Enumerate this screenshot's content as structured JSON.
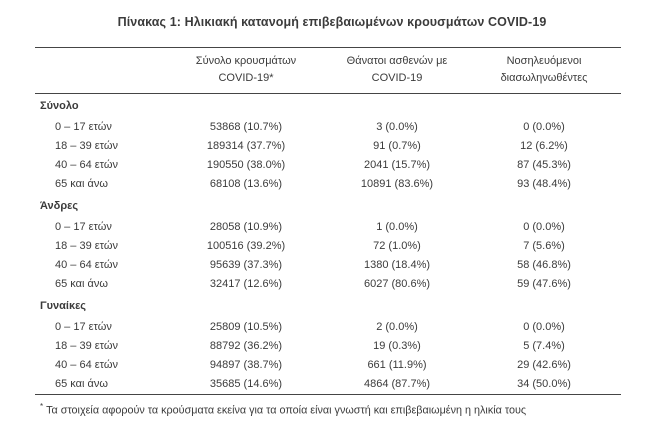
{
  "title": "Πίνακας 1: Ηλικιακή κατανομή επιβεβαιωμένων κρουσμάτων COVID-19",
  "table": {
    "columns": [
      {
        "line1": "Σύνολο κρουσμάτων",
        "line2": "COVID-19*"
      },
      {
        "line1": "Θάνατοι ασθενών με",
        "line2": "COVID-19"
      },
      {
        "line1": "Νοσηλευόμενοι",
        "line2": "διασωληνωθέντες"
      }
    ],
    "sections": [
      {
        "name": "Σύνολο",
        "rows": [
          {
            "label": "0 – 17 ετών",
            "cases": "53868 (10.7%)",
            "deaths": "3 (0.0%)",
            "intubated": "0 (0.0%)"
          },
          {
            "label": "18 – 39 ετών",
            "cases": "189314 (37.7%)",
            "deaths": "91 (0.7%)",
            "intubated": "12 (6.2%)"
          },
          {
            "label": "40 – 64 ετών",
            "cases": "190550 (38.0%)",
            "deaths": "2041 (15.7%)",
            "intubated": "87 (45.3%)"
          },
          {
            "label": "65 και άνω",
            "cases": "68108 (13.6%)",
            "deaths": "10891 (83.6%)",
            "intubated": "93 (48.4%)"
          }
        ]
      },
      {
        "name": "Άνδρες",
        "rows": [
          {
            "label": "0 – 17 ετών",
            "cases": "28058 (10.9%)",
            "deaths": "1 (0.0%)",
            "intubated": "0 (0.0%)"
          },
          {
            "label": "18 – 39 ετών",
            "cases": "100516 (39.2%)",
            "deaths": "72 (1.0%)",
            "intubated": "7 (5.6%)"
          },
          {
            "label": "40 – 64 ετών",
            "cases": "95639 (37.3%)",
            "deaths": "1380 (18.4%)",
            "intubated": "58 (46.8%)"
          },
          {
            "label": "65 και άνω",
            "cases": "32417 (12.6%)",
            "deaths": "6027 (80.6%)",
            "intubated": "59 (47.6%)"
          }
        ]
      },
      {
        "name": "Γυναίκες",
        "rows": [
          {
            "label": "0 – 17 ετών",
            "cases": "25809 (10.5%)",
            "deaths": "2 (0.0%)",
            "intubated": "0 (0.0%)"
          },
          {
            "label": "18 – 39 ετών",
            "cases": "88792 (36.2%)",
            "deaths": "19 (0.3%)",
            "intubated": "5 (7.4%)"
          },
          {
            "label": "40 – 64 ετών",
            "cases": "94897 (38.7%)",
            "deaths": "661 (11.9%)",
            "intubated": "29 (42.6%)"
          },
          {
            "label": "65 και άνω",
            "cases": "35685 (14.6%)",
            "deaths": "4864 (87.7%)",
            "intubated": "34 (50.0%)"
          }
        ]
      }
    ],
    "footnote_marker": "*",
    "footnote": "Τα στοιχεία αφορούν τα κρούσματα εκείνα για τα οποία είναι γνωστή και επιβεβαιωμένη η ηλικία τους"
  },
  "colors": {
    "text": "#3b3b3b",
    "rule": "#454545",
    "background": "#ffffff"
  }
}
